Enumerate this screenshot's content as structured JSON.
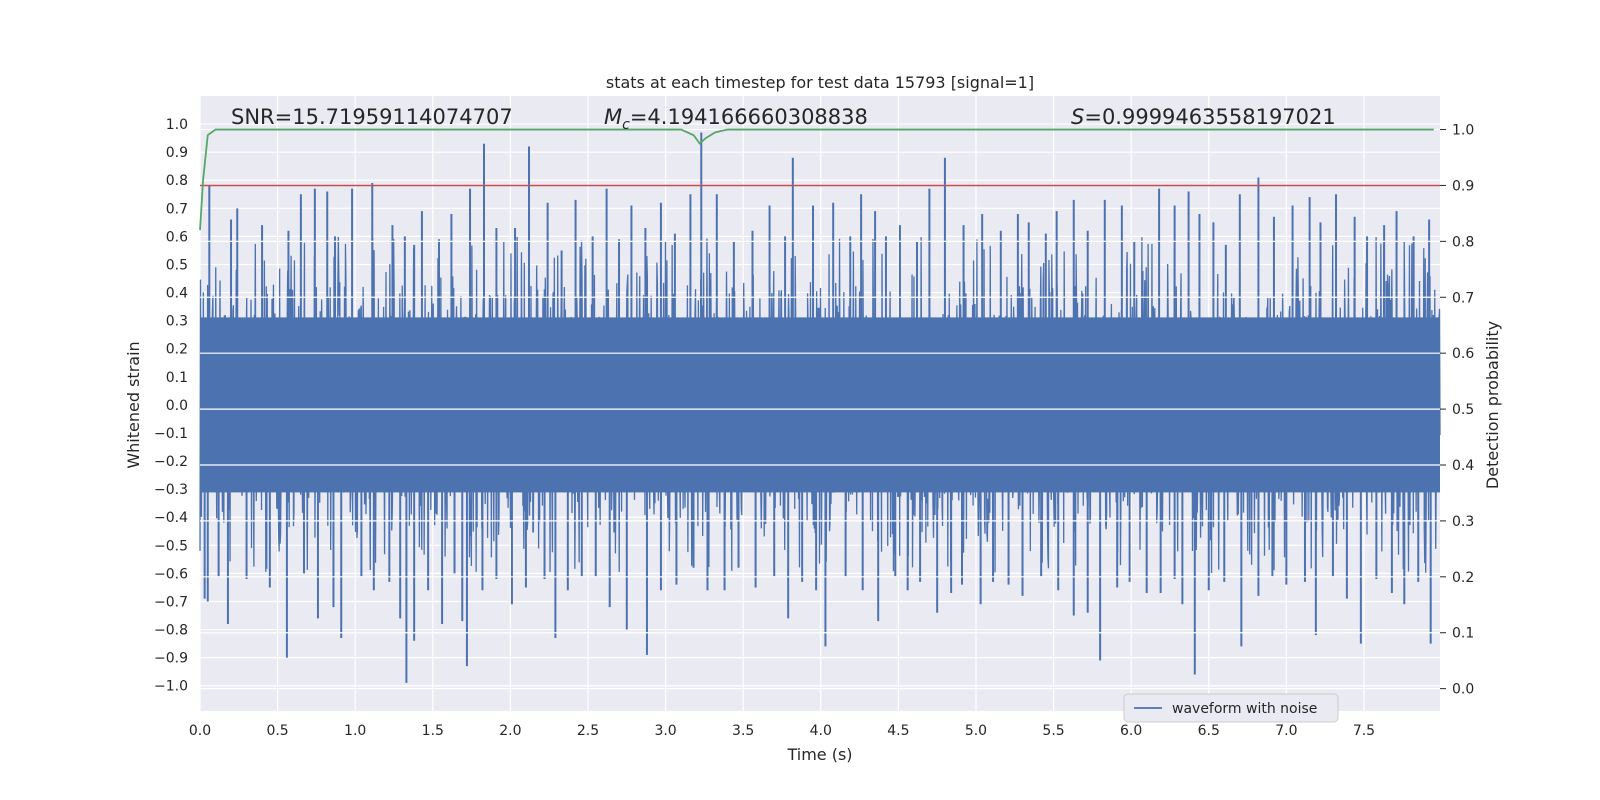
{
  "chart_data": {
    "type": "line",
    "title": "stats at each timestep for test data 15793 [signal=1]",
    "xlabel": "Time (s)",
    "ylabel": "Whitened strain",
    "ylabel_right": "Detection probability",
    "xlim": [
      0.0,
      7.99
    ],
    "ylim": [
      -1.09,
      1.1
    ],
    "ylim_right": [
      -0.04,
      1.06
    ],
    "x_ticks": [
      0.0,
      0.5,
      1.0,
      1.5,
      2.0,
      2.5,
      3.0,
      3.5,
      4.0,
      4.5,
      5.0,
      5.5,
      6.0,
      6.5,
      7.0,
      7.5
    ],
    "x_tick_labels": [
      "0.0",
      "0.5",
      "1.0",
      "1.5",
      "2.0",
      "2.5",
      "3.0",
      "3.5",
      "4.0",
      "4.5",
      "5.0",
      "5.5",
      "6.0",
      "6.5",
      "7.0",
      "7.5"
    ],
    "y_ticks": [
      1.0,
      0.9,
      0.8,
      0.7,
      0.6,
      0.5,
      0.4,
      0.3,
      0.2,
      0.1,
      0.0,
      -0.1,
      -0.2,
      -0.3,
      -0.4,
      -0.5,
      -0.6,
      -0.7,
      -0.8,
      -0.9,
      -1.0
    ],
    "y_tick_labels": [
      "1.0",
      "0.9",
      "0.8",
      "0.7",
      "0.6",
      "0.5",
      "0.4",
      "0.3",
      "0.2",
      "0.1",
      "0.0",
      "−0.1",
      "−0.2",
      "−0.3",
      "−0.4",
      "−0.5",
      "−0.6",
      "−0.7",
      "−0.8",
      "−0.9",
      "−1.0"
    ],
    "y2_ticks": [
      1.0,
      0.9,
      0.8,
      0.7,
      0.6,
      0.5,
      0.4,
      0.3,
      0.2,
      0.1,
      0.0
    ],
    "y2_tick_labels": [
      "1.0",
      "0.9",
      "0.8",
      "0.7",
      "0.6",
      "0.5",
      "0.4",
      "0.3",
      "0.2",
      "0.1",
      "0.0"
    ],
    "grid": true,
    "legend": {
      "entries": [
        "waveform with noise"
      ],
      "placement": "lower-right"
    },
    "stats": {
      "snr": "SNR=15.71959114074707",
      "mc_symbol": "M",
      "mc_sub": "c",
      "mc_value": "=4.194166660308838",
      "s_symbol": "S",
      "s_value": "=0.9999463558197021"
    },
    "threshold_line": {
      "axis": "right",
      "value": 0.9,
      "color": "#c44e52"
    },
    "series": [
      {
        "name": "waveform with noise",
        "axis": "left",
        "color": "#4c72b0",
        "style": "dense-noise",
        "noise_band": 0.38,
        "peaks_up": [
          [
            0.06,
            0.78
          ],
          [
            0.2,
            0.66
          ],
          [
            0.24,
            0.7
          ],
          [
            0.4,
            0.64
          ],
          [
            0.57,
            0.62
          ],
          [
            0.65,
            0.75
          ],
          [
            0.74,
            0.77
          ],
          [
            0.82,
            0.76
          ],
          [
            0.87,
            0.6
          ],
          [
            0.98,
            0.77
          ],
          [
            1.11,
            0.79
          ],
          [
            1.24,
            0.64
          ],
          [
            1.32,
            0.6
          ],
          [
            1.38,
            0.57
          ],
          [
            1.43,
            0.69
          ],
          [
            1.54,
            0.59
          ],
          [
            1.62,
            0.68
          ],
          [
            1.74,
            0.77
          ],
          [
            1.83,
            0.93
          ],
          [
            1.91,
            0.63
          ],
          [
            2.03,
            0.63
          ],
          [
            2.12,
            0.92
          ],
          [
            2.24,
            0.72
          ],
          [
            2.33,
            0.55
          ],
          [
            2.42,
            0.73
          ],
          [
            2.53,
            0.6
          ],
          [
            2.62,
            0.77
          ],
          [
            2.7,
            0.59
          ],
          [
            2.78,
            0.71
          ],
          [
            2.87,
            0.63
          ],
          [
            2.97,
            0.72
          ],
          [
            3.06,
            0.61
          ],
          [
            3.16,
            0.75
          ],
          [
            3.23,
            0.97
          ],
          [
            3.33,
            0.75
          ],
          [
            3.44,
            0.58
          ],
          [
            3.56,
            0.62
          ],
          [
            3.67,
            0.71
          ],
          [
            3.77,
            0.6
          ],
          [
            3.82,
            0.88
          ],
          [
            3.95,
            0.71
          ],
          [
            4.08,
            0.72
          ],
          [
            4.19,
            0.6
          ],
          [
            4.26,
            0.75
          ],
          [
            4.35,
            0.69
          ],
          [
            4.42,
            0.6
          ],
          [
            4.51,
            0.64
          ],
          [
            4.62,
            0.58
          ],
          [
            4.7,
            0.77
          ],
          [
            4.8,
            0.88
          ],
          [
            4.92,
            0.64
          ],
          [
            5.04,
            0.68
          ],
          [
            5.16,
            0.62
          ],
          [
            5.27,
            0.68
          ],
          [
            5.34,
            0.65
          ],
          [
            5.45,
            0.61
          ],
          [
            5.52,
            0.69
          ],
          [
            5.63,
            0.73
          ],
          [
            5.72,
            0.62
          ],
          [
            5.83,
            0.73
          ],
          [
            5.94,
            0.71
          ],
          [
            6.02,
            0.58
          ],
          [
            6.18,
            0.77
          ],
          [
            6.28,
            0.71
          ],
          [
            6.37,
            0.76
          ],
          [
            6.44,
            0.68
          ],
          [
            6.53,
            0.65
          ],
          [
            6.61,
            0.57
          ],
          [
            6.7,
            0.75
          ],
          [
            6.82,
            0.81
          ],
          [
            6.92,
            0.67
          ],
          [
            7.04,
            0.71
          ],
          [
            7.15,
            0.74
          ],
          [
            7.22,
            0.65
          ],
          [
            7.32,
            0.75
          ],
          [
            7.44,
            0.67
          ],
          [
            7.52,
            0.6
          ],
          [
            7.63,
            0.64
          ],
          [
            7.71,
            0.69
          ],
          [
            7.82,
            0.6
          ],
          [
            7.92,
            0.66
          ]
        ],
        "peaks_down": [
          [
            0.03,
            -0.69
          ],
          [
            0.05,
            -0.7
          ],
          [
            0.12,
            -0.61
          ],
          [
            0.18,
            -0.78
          ],
          [
            0.3,
            -0.62
          ],
          [
            0.45,
            -0.65
          ],
          [
            0.56,
            -0.9
          ],
          [
            0.67,
            -0.6
          ],
          [
            0.76,
            -0.76
          ],
          [
            0.86,
            -0.72
          ],
          [
            0.91,
            -0.83
          ],
          [
            1.04,
            -0.61
          ],
          [
            1.12,
            -0.66
          ],
          [
            1.22,
            -0.63
          ],
          [
            1.29,
            -0.76
          ],
          [
            1.33,
            -0.99
          ],
          [
            1.38,
            -0.84
          ],
          [
            1.47,
            -0.66
          ],
          [
            1.56,
            -0.78
          ],
          [
            1.64,
            -0.6
          ],
          [
            1.69,
            -0.77
          ],
          [
            1.72,
            -0.93
          ],
          [
            1.82,
            -0.66
          ],
          [
            1.91,
            -0.62
          ],
          [
            2.01,
            -0.71
          ],
          [
            2.1,
            -0.65
          ],
          [
            2.22,
            -0.62
          ],
          [
            2.29,
            -0.83
          ],
          [
            2.37,
            -0.66
          ],
          [
            2.46,
            -0.61
          ],
          [
            2.55,
            -0.61
          ],
          [
            2.64,
            -0.72
          ],
          [
            2.75,
            -0.8
          ],
          [
            2.88,
            -0.89
          ],
          [
            2.97,
            -0.66
          ],
          [
            3.07,
            -0.64
          ],
          [
            3.18,
            -0.58
          ],
          [
            3.27,
            -0.66
          ],
          [
            3.38,
            -0.66
          ],
          [
            3.47,
            -0.58
          ],
          [
            3.58,
            -0.65
          ],
          [
            3.7,
            -0.61
          ],
          [
            3.79,
            -0.76
          ],
          [
            3.88,
            -0.63
          ],
          [
            3.97,
            -0.66
          ],
          [
            4.03,
            -0.86
          ],
          [
            4.16,
            -0.61
          ],
          [
            4.27,
            -0.66
          ],
          [
            4.37,
            -0.77
          ],
          [
            4.48,
            -0.61
          ],
          [
            4.56,
            -0.66
          ],
          [
            4.64,
            -0.63
          ],
          [
            4.75,
            -0.74
          ],
          [
            4.84,
            -0.67
          ],
          [
            4.91,
            -0.64
          ],
          [
            5.03,
            -0.71
          ],
          [
            5.11,
            -0.63
          ],
          [
            5.21,
            -0.64
          ],
          [
            5.3,
            -0.68
          ],
          [
            5.42,
            -0.61
          ],
          [
            5.53,
            -0.66
          ],
          [
            5.63,
            -0.75
          ],
          [
            5.72,
            -0.74
          ],
          [
            5.8,
            -0.91
          ],
          [
            5.91,
            -0.65
          ],
          [
            5.99,
            -0.63
          ],
          [
            6.1,
            -0.67
          ],
          [
            6.19,
            -0.67
          ],
          [
            6.28,
            -0.62
          ],
          [
            6.33,
            -0.71
          ],
          [
            6.41,
            -0.96
          ],
          [
            6.5,
            -0.66
          ],
          [
            6.6,
            -0.63
          ],
          [
            6.71,
            -0.86
          ],
          [
            6.82,
            -0.68
          ],
          [
            6.91,
            -0.61
          ],
          [
            7.0,
            -0.64
          ],
          [
            7.12,
            -0.63
          ],
          [
            7.19,
            -0.82
          ],
          [
            7.3,
            -0.61
          ],
          [
            7.39,
            -0.69
          ],
          [
            7.48,
            -0.85
          ],
          [
            7.58,
            -0.62
          ],
          [
            7.68,
            -0.67
          ],
          [
            7.76,
            -0.71
          ],
          [
            7.85,
            -0.63
          ],
          [
            7.93,
            -0.85
          ]
        ]
      },
      {
        "name": "detection probability",
        "axis": "right",
        "color": "#55a868",
        "x": [
          0.0,
          0.02,
          0.05,
          0.1,
          0.2,
          3.0,
          3.1,
          3.18,
          3.22,
          3.26,
          3.32,
          3.4,
          3.5,
          7.95
        ],
        "y": [
          0.82,
          0.91,
          0.99,
          1.0,
          1.0,
          1.0,
          1.0,
          0.99,
          0.975,
          0.985,
          0.995,
          1.0,
          1.0,
          1.0
        ]
      }
    ]
  }
}
